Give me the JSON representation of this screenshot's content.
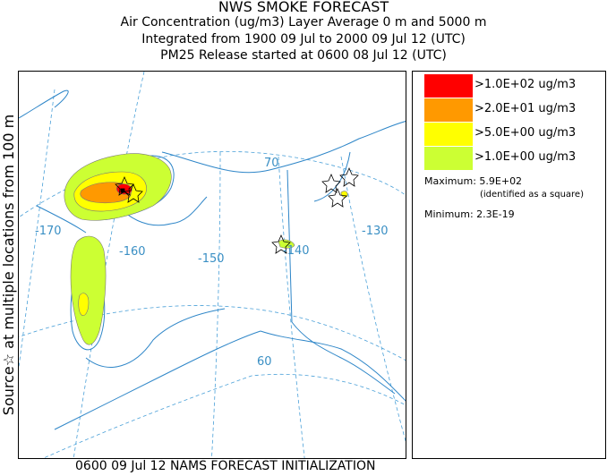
{
  "header": {
    "title": "NWS SMOKE FORECAST",
    "line2": "Air Concentration (ug/m3) Layer Average    0 m and  5000 m",
    "line3": "Integrated from 1900 09 Jul to 2000 09 Jul 12 (UTC)",
    "line4": "PM25 Release started at 0600 08 Jul 12 (UTC)"
  },
  "side_label": "Source☆ at multiple locations  from   100 m",
  "footer": "0600 09 Jul 12 NAMS FORECAST INITIALIZATION",
  "map": {
    "grid_labels": [
      "-170",
      "-160",
      "-150",
      "-140",
      "-130",
      "70",
      "60"
    ],
    "colors": {
      "coast": "#2e86c8",
      "grid": "#4aa0d8"
    }
  },
  "legend": {
    "items": [
      {
        "label": ">1.0E+02 ug/m3",
        "color": "#ff0000"
      },
      {
        "label": ">2.0E+01 ug/m3",
        "color": "#ff9900"
      },
      {
        "label": ">5.0E+00 ug/m3",
        "color": "#ffff00"
      },
      {
        "label": ">1.0E+00 ug/m3",
        "color": "#ccff33"
      }
    ],
    "maximum": "Maximum: 5.9E+02",
    "max_note": "(identified as a square)",
    "minimum": "Minimum: 2.3E-19"
  }
}
